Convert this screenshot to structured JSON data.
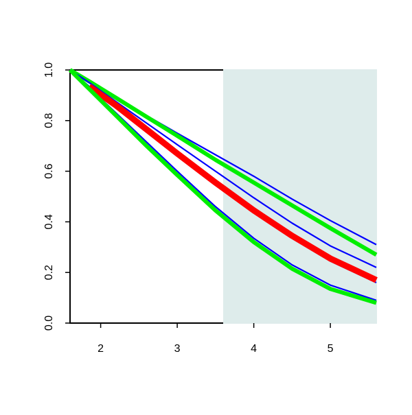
{
  "chart_data": {
    "type": "line",
    "x": [
      1.6,
      1.85,
      2.2,
      2.6,
      3,
      3.5,
      4,
      4.5,
      5,
      5.6
    ],
    "series": [
      {
        "color": "#0000ff",
        "values": [
          1.0,
          0.955,
          0.89,
          0.82,
          0.75,
          0.665,
          0.58,
          0.49,
          0.405,
          0.31
        ]
      },
      {
        "color": "#00ee00",
        "values": [
          1.0,
          0.955,
          0.89,
          0.815,
          0.74,
          0.645,
          0.555,
          0.465,
          0.375,
          0.27
        ]
      },
      {
        "color": "#0000ff",
        "values": [
          1.0,
          0.95,
          0.875,
          0.79,
          0.705,
          0.6,
          0.495,
          0.395,
          0.305,
          0.22
        ]
      },
      {
        "color": "#0000ff",
        "values": [
          1.0,
          0.935,
          0.855,
          0.76,
          0.665,
          0.55,
          0.44,
          0.335,
          0.245,
          0.16
        ]
      },
      {
        "color": "#ff0000",
        "values": [
          null,
          0.935,
          0.86,
          0.765,
          0.67,
          0.555,
          0.445,
          0.345,
          0.255,
          0.17
        ]
      },
      {
        "color": "#0000ff",
        "values": [
          1.0,
          0.93,
          0.83,
          0.715,
          0.6,
          0.46,
          0.335,
          0.23,
          0.15,
          0.09
        ]
      },
      {
        "color": "#00ee00",
        "values": [
          1.0,
          0.925,
          0.82,
          0.7,
          0.585,
          0.445,
          0.32,
          0.215,
          0.135,
          0.08
        ]
      }
    ],
    "shaded_region": {
      "x": [
        3.6,
        5.6
      ],
      "color": "#deeceb"
    },
    "xlim": [
      1.6,
      5.6
    ],
    "ylim": [
      0,
      1
    ],
    "xticks": [
      2,
      3,
      4,
      5
    ],
    "yticks": [
      {
        "value": 0,
        "label": "0.0"
      },
      0.2,
      0.4,
      0.6,
      0.8,
      {
        "value": 1,
        "label": "1.0"
      }
    ]
  }
}
